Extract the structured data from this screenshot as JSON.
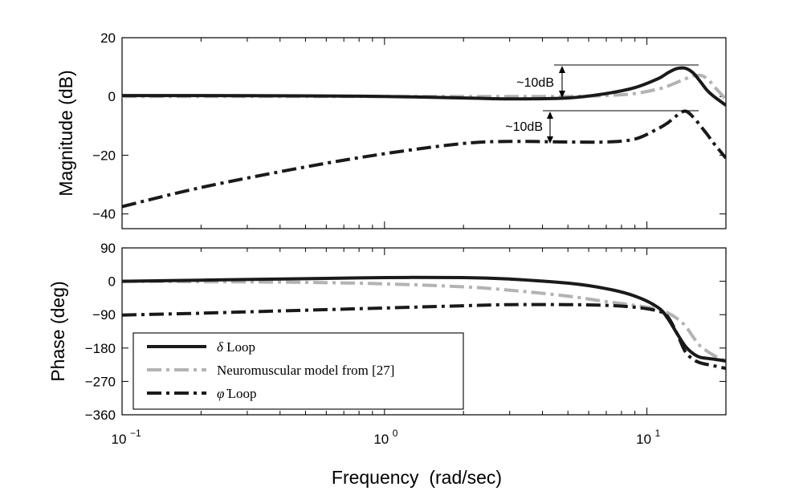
{
  "chart_data": [
    {
      "type": "line",
      "ylabel": "Magnitude (dB)",
      "xscale": "log",
      "xlim": [
        0.1,
        20
      ],
      "ylim": [
        -45,
        20
      ],
      "yticks": [
        20,
        0,
        -20,
        -40
      ],
      "yticklabels": [
        "20",
        "0",
        "−20",
        "−40"
      ],
      "grid": false,
      "x": [
        0.1,
        0.2,
        0.5,
        1,
        2,
        3,
        5,
        7,
        9,
        11,
        12,
        13,
        14,
        15,
        16,
        17,
        18,
        20
      ],
      "series": [
        {
          "name": "δ Loop",
          "color": "#1a1a1a",
          "dash": "solid",
          "values": [
            0.3,
            0.3,
            0.2,
            0.0,
            -0.5,
            -0.8,
            -0.5,
            1.0,
            3.0,
            6.0,
            8.0,
            9.5,
            9.6,
            8.0,
            5.0,
            2.0,
            0.0,
            -3.0
          ]
        },
        {
          "name": "Neuromuscular model from [27]",
          "color": "#b3b3b3",
          "dash": "dashdot",
          "values": [
            0.0,
            0.0,
            0.0,
            0.0,
            0.0,
            0.0,
            0.0,
            0.3,
            1.0,
            2.5,
            3.5,
            4.8,
            6.0,
            7.0,
            7.2,
            6.0,
            3.5,
            -1.0
          ]
        },
        {
          "name": "φ̇ Loop",
          "color": "#1a1a1a",
          "dash": "dashdot",
          "values": [
            -37.5,
            -31,
            -24,
            -19.5,
            -16,
            -15.3,
            -15.5,
            -15.5,
            -14.5,
            -11,
            -9,
            -6.5,
            -5,
            -7,
            -10,
            -13,
            -16,
            -21
          ]
        }
      ],
      "annotations": [
        {
          "text": "~10dB"
        },
        {
          "text": "~10dB"
        }
      ]
    },
    {
      "type": "line",
      "ylabel": "Phase (deg)",
      "xlabel": "Frequency  (rad/sec)",
      "xscale": "log",
      "xlim": [
        0.1,
        20
      ],
      "ylim": [
        -360,
        90
      ],
      "yticks": [
        90,
        0,
        -90,
        -180,
        -270,
        -360
      ],
      "yticklabels": [
        "90",
        "0",
        "−90",
        "−180",
        "−270",
        "−360"
      ],
      "xticks": [
        0.1,
        1,
        10
      ],
      "xtick_base": "10",
      "xtick_exponents": [
        "−1",
        "0",
        "1"
      ],
      "grid": false,
      "legend_position": "lower-left",
      "x": [
        0.1,
        0.2,
        0.5,
        1,
        2,
        3,
        5,
        7,
        9,
        11,
        12,
        13,
        14,
        15,
        16,
        18,
        20
      ],
      "series": [
        {
          "name": "δ Loop",
          "legend_symbol": "δ",
          "legend_rest": " Loop",
          "color": "#1a1a1a",
          "dash": "solid",
          "values": [
            0,
            3,
            7,
            10,
            10,
            6,
            -5,
            -20,
            -40,
            -70,
            -100,
            -140,
            -175,
            -195,
            -205,
            -210,
            -215
          ]
        },
        {
          "name": "Neuromuscular model from [27]",
          "legend_symbol": "",
          "legend_rest": "Neuromuscular model from [27]",
          "color": "#b3b3b3",
          "dash": "dashdot",
          "values": [
            0,
            -1,
            -3,
            -7,
            -15,
            -24,
            -40,
            -55,
            -65,
            -75,
            -85,
            -100,
            -120,
            -150,
            -175,
            -200,
            -215
          ]
        },
        {
          "name": "φ̇ Loop",
          "legend_symbol": "φ̇",
          "legend_rest": " Loop",
          "color": "#1a1a1a",
          "dash": "dashdot",
          "values": [
            -91,
            -86,
            -78,
            -72,
            -66,
            -63,
            -63,
            -65,
            -70,
            -80,
            -95,
            -140,
            -190,
            -210,
            -220,
            -228,
            -235
          ]
        }
      ]
    }
  ]
}
